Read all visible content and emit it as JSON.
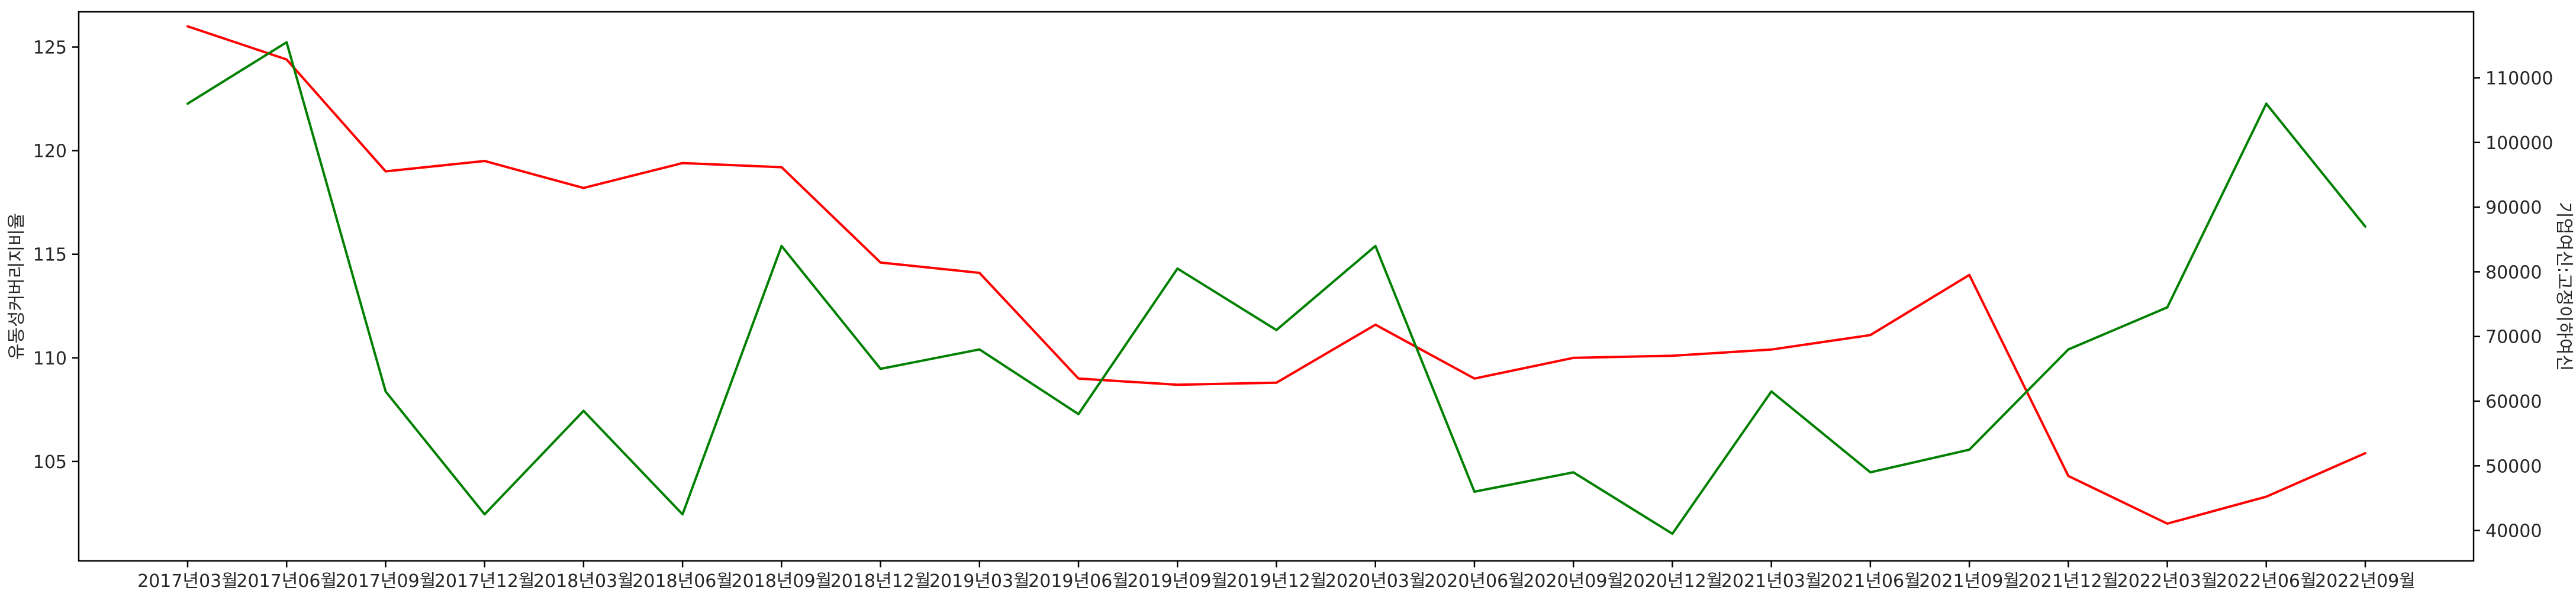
{
  "chart_data": {
    "type": "line",
    "x": [
      "2017년03월",
      "2017년06월",
      "2017년09월",
      "2017년12월",
      "2018년03월",
      "2018년06월",
      "2018년09월",
      "2018년12월",
      "2019년03월",
      "2019년06월",
      "2019년09월",
      "2019년12월",
      "2020년03월",
      "2020년06월",
      "2020년09월",
      "2020년12월",
      "2021년03월",
      "2021년06월",
      "2021년09월",
      "2021년12월",
      "2022년03월",
      "2022년06월",
      "2022년09월"
    ],
    "ylabel_left": "유동성커버리지비율",
    "ylabel_right": "기업여신:고정이하여신",
    "ylim_left": [
      100.2,
      126.7
    ],
    "yticks_left": [
      105,
      110,
      115,
      120,
      125
    ],
    "ylim_right": [
      35300,
      120200
    ],
    "yticks_right": [
      40000,
      50000,
      60000,
      70000,
      80000,
      90000,
      100000,
      110000
    ],
    "series": [
      {
        "axis": "left",
        "color": "#ff0000",
        "values": [
          126.0,
          124.4,
          119.0,
          119.5,
          118.2,
          119.4,
          119.2,
          114.6,
          114.1,
          109.0,
          108.7,
          108.8,
          111.6,
          109.0,
          110.0,
          110.1,
          110.4,
          111.1,
          114.0,
          104.3,
          102.0,
          103.3,
          105.4
        ]
      },
      {
        "axis": "right",
        "color": "#008000",
        "values": [
          106000,
          115500,
          61500,
          42500,
          58500,
          42500,
          84000,
          65000,
          68000,
          58000,
          80500,
          71000,
          84000,
          46000,
          49000,
          39500,
          61500,
          49000,
          52500,
          68000,
          74500,
          106000,
          87000
        ]
      }
    ],
    "grid": false,
    "legend": "none"
  }
}
